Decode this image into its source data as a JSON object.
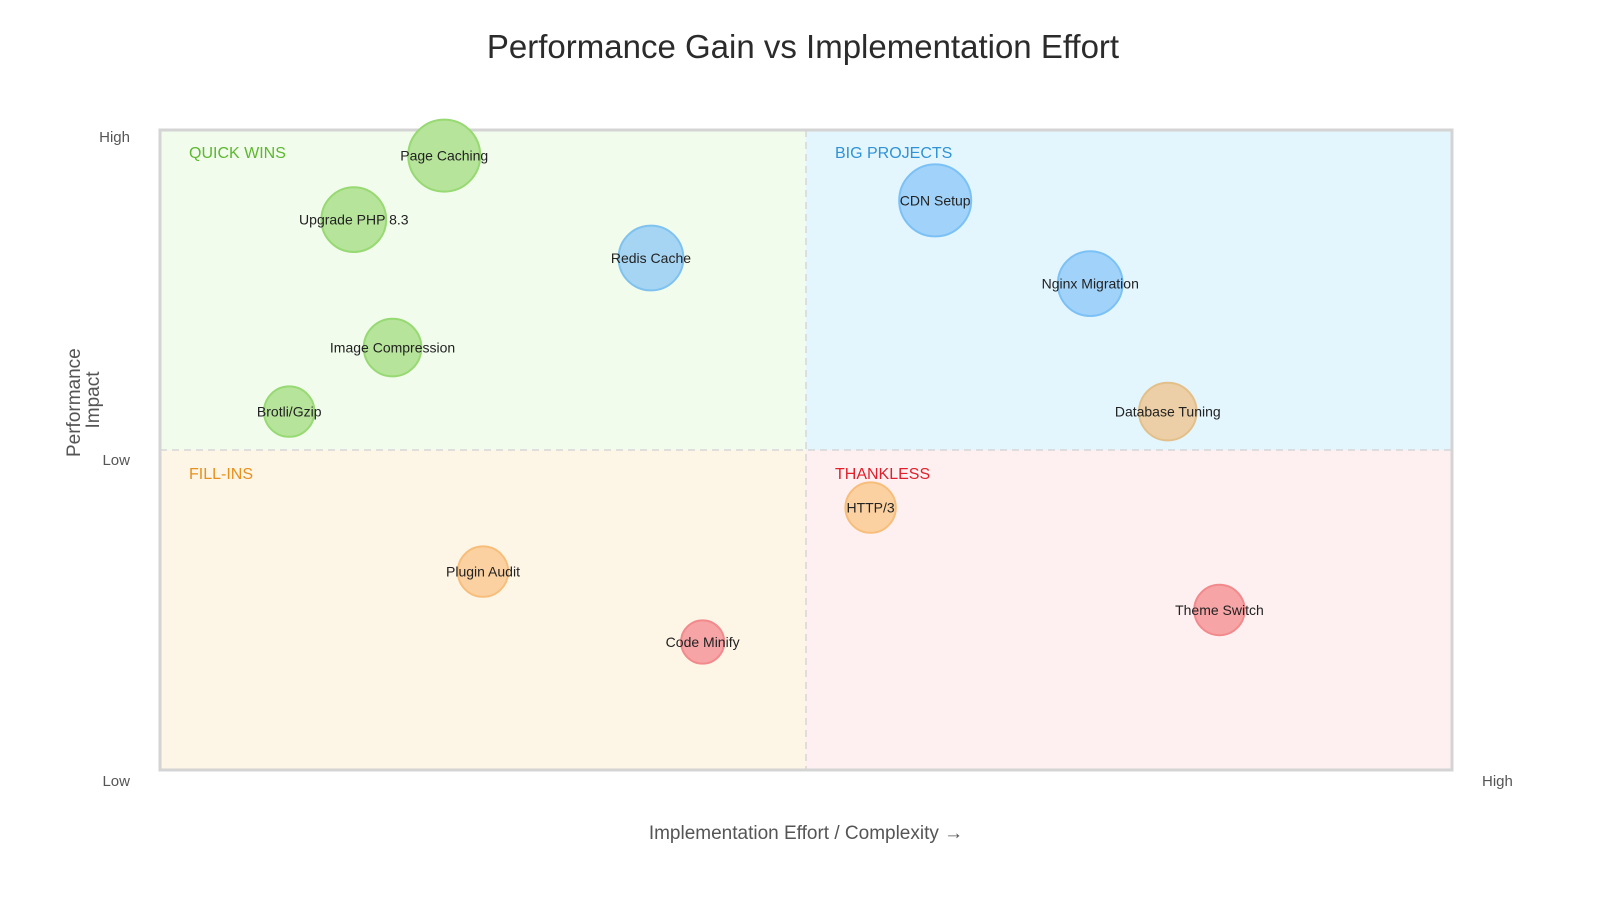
{
  "chart_data": {
    "type": "scatter",
    "title": "Performance Gain vs Implementation Effort",
    "xlabel": "Implementation Effort / Complexity →",
    "ylabel": "Performance Impact",
    "ylabel_lines": [
      "Performance",
      "Impact"
    ],
    "xlim": [
      0,
      10
    ],
    "ylim": [
      0,
      10
    ],
    "x_ticks": {
      "low": "Low",
      "high": "High"
    },
    "y_ticks": {
      "low": "Low",
      "mid": "Low",
      "high": "High"
    },
    "grid": false,
    "legend": "none",
    "quadrants": [
      {
        "label": "QUICK WINS",
        "position": "top-left",
        "color": "#5cb82e",
        "fill": "#f2fced"
      },
      {
        "label": "BIG PROJECTS",
        "position": "top-right",
        "color": "#2f93d6",
        "fill": "#e3f5fd"
      },
      {
        "label": "FILL-INS",
        "position": "bottom-left",
        "color": "#e8901c",
        "fill": "#fdf5e6"
      },
      {
        "label": "THANKLESS",
        "position": "bottom-right",
        "color": "#e0202c",
        "fill": "#fef0f0"
      }
    ],
    "points": [
      {
        "label": "Page Caching",
        "x": 2.2,
        "y": 9.6,
        "size": 10,
        "fill": "#b6e49a",
        "stroke": "#97d972"
      },
      {
        "label": "Upgrade PHP 8.3",
        "x": 1.5,
        "y": 8.6,
        "size": 9,
        "fill": "#b6e49a",
        "stroke": "#97d972"
      },
      {
        "label": "Redis Cache",
        "x": 3.8,
        "y": 8.0,
        "size": 9,
        "fill": "#a6d5f3",
        "stroke": "#7fc2ef"
      },
      {
        "label": "Image Compression",
        "x": 1.8,
        "y": 6.6,
        "size": 8,
        "fill": "#b6e49a",
        "stroke": "#97d972"
      },
      {
        "label": "Brotli/Gzip",
        "x": 1.0,
        "y": 5.6,
        "size": 7,
        "fill": "#b6e49a",
        "stroke": "#97d972"
      },
      {
        "label": "CDN Setup",
        "x": 6.0,
        "y": 8.9,
        "size": 10,
        "fill": "#a1d3fa",
        "stroke": "#7cc1f6"
      },
      {
        "label": "Nginx Migration",
        "x": 7.2,
        "y": 7.6,
        "size": 9,
        "fill": "#a1d3fa",
        "stroke": "#7cc1f6"
      },
      {
        "label": "Database Tuning",
        "x": 7.8,
        "y": 5.6,
        "size": 8,
        "fill": "#eccfa6",
        "stroke": "#e3c08a"
      },
      {
        "label": "HTTP/3",
        "x": 5.5,
        "y": 4.1,
        "size": 7,
        "fill": "#fbd1a1",
        "stroke": "#f7be7b"
      },
      {
        "label": "Plugin Audit",
        "x": 2.5,
        "y": 3.1,
        "size": 7,
        "fill": "#fbd1a1",
        "stroke": "#f7be7b"
      },
      {
        "label": "Code Minify",
        "x": 4.2,
        "y": 2.0,
        "size": 6,
        "fill": "#f6a4a6",
        "stroke": "#f28a8d"
      },
      {
        "label": "Theme Switch",
        "x": 8.2,
        "y": 2.5,
        "size": 7,
        "fill": "#f6a4a6",
        "stroke": "#f28a8d"
      }
    ]
  }
}
